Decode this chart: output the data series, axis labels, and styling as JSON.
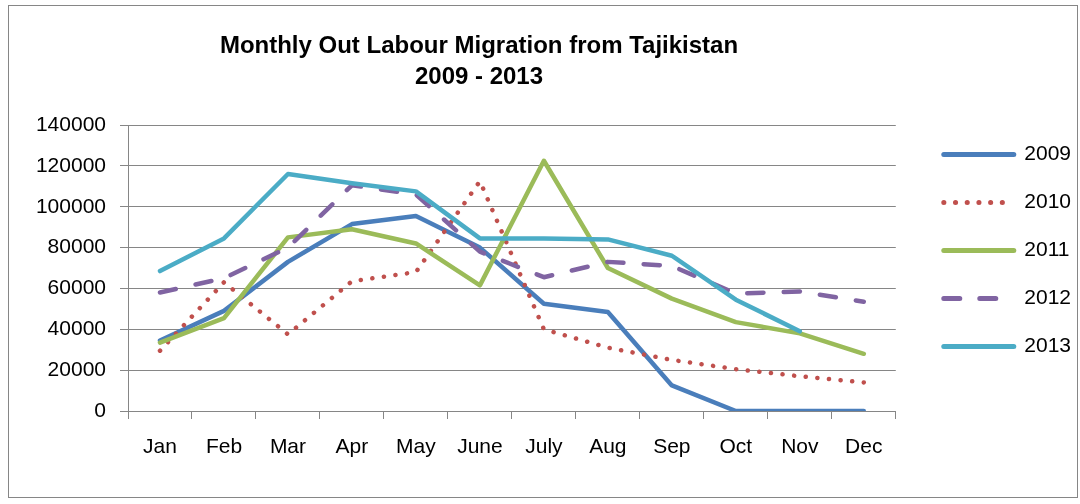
{
  "chart_data": {
    "type": "line",
    "title": "Monthly Out Labour Migration from Tajikistan\n2009 - 2013",
    "categories": [
      "Jan",
      "Feb",
      "Mar",
      "Apr",
      "May",
      "June",
      "July",
      "Aug",
      "Sep",
      "Oct",
      "Nov",
      "Dec"
    ],
    "series": [
      {
        "name": "2009",
        "color": "#4a7ebb",
        "line_style": "solid",
        "values": [
          34500,
          49000,
          73000,
          91500,
          95500,
          80000,
          52500,
          48500,
          12500,
          0,
          0,
          0
        ]
      },
      {
        "name": "2010",
        "color": "#c0504d",
        "line_style": "dotted",
        "values": [
          29500,
          63000,
          37500,
          63500,
          68000,
          112500,
          40000,
          31000,
          25000,
          20500,
          17000,
          14000
        ]
      },
      {
        "name": "2011",
        "color": "#9bbb59",
        "line_style": "solid",
        "values": [
          33500,
          45500,
          85000,
          89000,
          82000,
          61500,
          122500,
          70000,
          55000,
          43500,
          38000,
          28000
        ]
      },
      {
        "name": "2012",
        "color": "#8064a2",
        "line_style": "dashed",
        "values": [
          58000,
          65000,
          80000,
          110500,
          106000,
          78000,
          65500,
          73000,
          71000,
          57500,
          58500,
          53500
        ]
      },
      {
        "name": "2013",
        "color": "#4bacc6",
        "line_style": "solid",
        "values": [
          68500,
          84500,
          116000,
          111500,
          107500,
          84500,
          84500,
          84000,
          76000,
          54500,
          39000,
          null
        ]
      }
    ],
    "ylim": [
      0,
      140000
    ],
    "yticks": [
      0,
      20000,
      40000,
      60000,
      80000,
      100000,
      120000,
      140000
    ],
    "grid": "y",
    "legend": "right",
    "marker": "none"
  }
}
